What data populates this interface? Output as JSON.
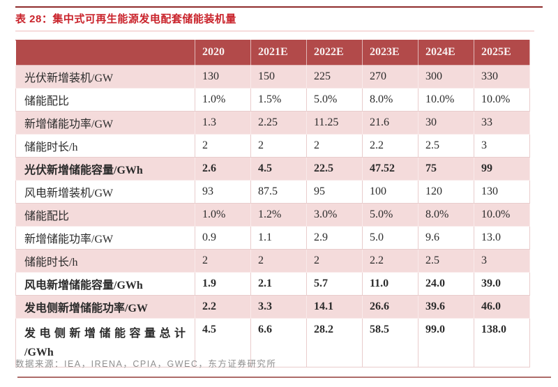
{
  "title": "表 28：集中式可再生能源发电配套储能装机量",
  "footer": {
    "source": "数据来源：IEA，IRENA，CPIA，GWEC，东方证券研究所"
  },
  "colors": {
    "header_bg": "#b24a4a",
    "row_pink": "#f4dbdb",
    "title_red": "#c9232b",
    "top_rule": "#8e2b2b",
    "bottom_rule": "#ad6b68"
  },
  "table": {
    "columns": [
      "",
      "2020",
      "2021E",
      "2022E",
      "2023E",
      "2024E",
      "2025E"
    ],
    "rows": [
      {
        "label": "光伏新增装机/GW",
        "values": [
          "130",
          "150",
          "225",
          "270",
          "300",
          "330"
        ],
        "bold": false,
        "shade": "pink"
      },
      {
        "label": "储能配比",
        "values": [
          "1.0%",
          "1.5%",
          "5.0%",
          "8.0%",
          "10.0%",
          "10.0%"
        ],
        "bold": false,
        "shade": "white"
      },
      {
        "label": "新增储能功率/GW",
        "values": [
          "1.3",
          "2.25",
          "11.25",
          "21.6",
          "30",
          "33"
        ],
        "bold": false,
        "shade": "pink"
      },
      {
        "label": "储能时长/h",
        "values": [
          "2",
          "2",
          "2",
          "2.2",
          "2.5",
          "3"
        ],
        "bold": false,
        "shade": "white"
      },
      {
        "label": "光伏新增储能容量/GWh",
        "values": [
          "2.6",
          "4.5",
          "22.5",
          "47.52",
          "75",
          "99"
        ],
        "bold": true,
        "shade": "pink"
      },
      {
        "label": "风电新增装机/GW",
        "values": [
          "93",
          "87.5",
          "95",
          "100",
          "120",
          "130"
        ],
        "bold": false,
        "shade": "white"
      },
      {
        "label": "储能配比",
        "values": [
          "1.0%",
          "1.2%",
          "3.0%",
          "5.0%",
          "8.0%",
          "10.0%"
        ],
        "bold": false,
        "shade": "pink"
      },
      {
        "label": "新增储能功率/GW",
        "values": [
          "0.9",
          "1.1",
          "2.9",
          "5.0",
          "9.6",
          "13.0"
        ],
        "bold": false,
        "shade": "white"
      },
      {
        "label": "储能时长/h",
        "values": [
          "2",
          "2",
          "2",
          "2.2",
          "2.5",
          "3"
        ],
        "bold": false,
        "shade": "pink"
      },
      {
        "label": "风电新增储能容量/GWh",
        "values": [
          "1.9",
          "2.1",
          "5.7",
          "11.0",
          "24.0",
          "39.0"
        ],
        "bold": true,
        "shade": "white"
      },
      {
        "label": "发电侧新增储能功率/GW",
        "values": [
          "2.2",
          "3.3",
          "14.1",
          "26.6",
          "39.6",
          "46.0"
        ],
        "bold": true,
        "shade": "pink"
      },
      {
        "label_lines": [
          "发电侧新增储能容量总计",
          "/GWh"
        ],
        "values": [
          "4.5",
          "6.6",
          "28.2",
          "58.5",
          "99.0",
          "138.0"
        ],
        "bold": true,
        "shade": "white",
        "tall": true
      }
    ]
  }
}
